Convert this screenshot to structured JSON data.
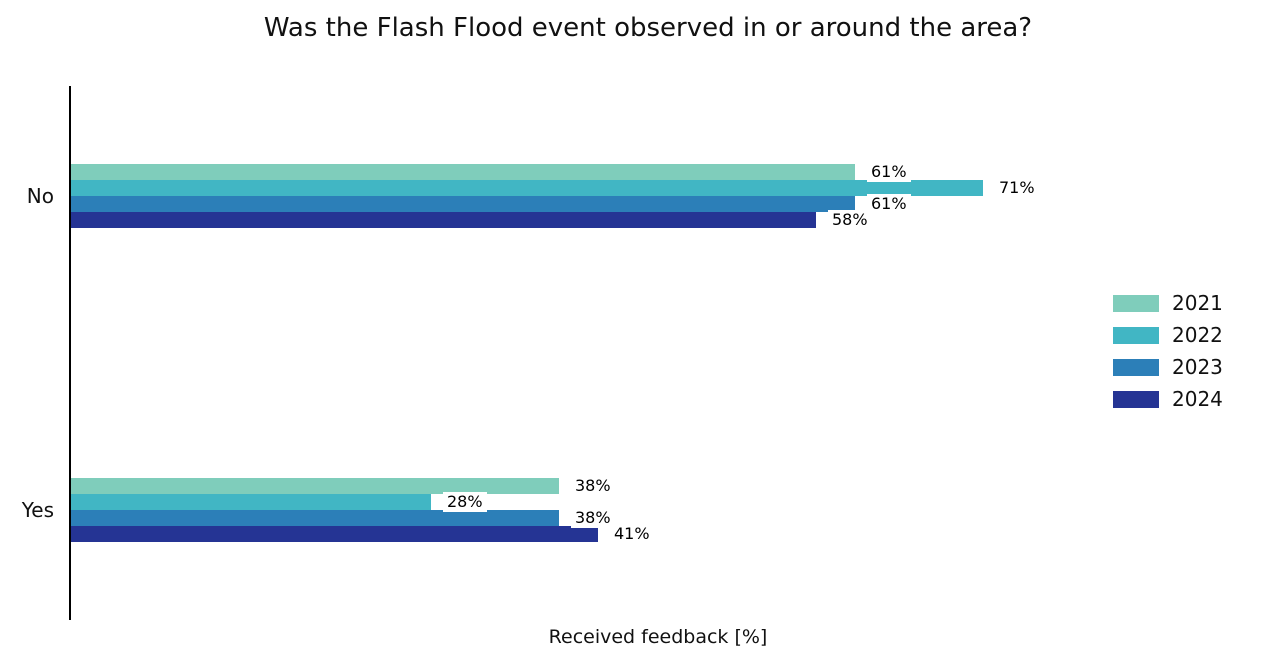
{
  "chart_data": {
    "type": "bar",
    "orientation": "horizontal",
    "title": "Was the Flash Flood event observed in or around the area?",
    "xlabel": "Received feedback [%]",
    "ylabel": "",
    "value_suffix": "%",
    "categories": [
      "No",
      "Yes"
    ],
    "series": [
      {
        "name": "2021",
        "color": "#7fcdbb",
        "values": [
          61,
          38
        ]
      },
      {
        "name": "2022",
        "color": "#41b6c4",
        "values": [
          71,
          28
        ]
      },
      {
        "name": "2023",
        "color": "#2c7fb8",
        "values": [
          61,
          38
        ]
      },
      {
        "name": "2024",
        "color": "#253494",
        "values": [
          58,
          41
        ]
      }
    ],
    "xlim": [
      0,
      91
    ],
    "grid": false,
    "legend_position": "center right",
    "value_labels_shown": true,
    "axis_color": "#000000",
    "background_color": "#ffffff"
  }
}
